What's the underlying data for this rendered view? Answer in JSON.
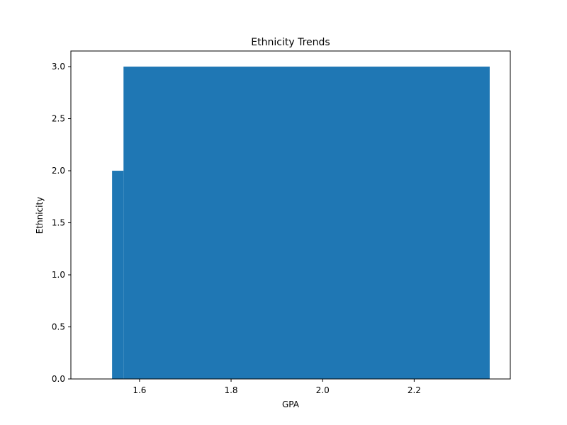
{
  "chart_data": {
    "type": "bar",
    "title": "Ethnicity Trends",
    "xlabel": "GPA",
    "ylabel": "Ethnicity",
    "xlim": [
      1.45,
      2.41
    ],
    "ylim": [
      0,
      3.15
    ],
    "xticks": [
      1.6,
      1.8,
      2.0,
      2.2
    ],
    "xtick_labels": [
      "1.6",
      "1.8",
      "2.0",
      "2.2"
    ],
    "yticks": [
      0.0,
      0.5,
      1.0,
      1.5,
      2.0,
      2.5,
      3.0
    ],
    "ytick_labels": [
      "0.0",
      "0.5",
      "1.0",
      "1.5",
      "2.0",
      "2.5",
      "3.0"
    ],
    "grid": false,
    "legend": false,
    "bar_color": "#1f77b4",
    "bars": [
      {
        "x_start": 1.54,
        "x_end": 1.565,
        "value": 2
      },
      {
        "x_start": 1.565,
        "x_end": 2.365,
        "value": 3
      }
    ]
  }
}
